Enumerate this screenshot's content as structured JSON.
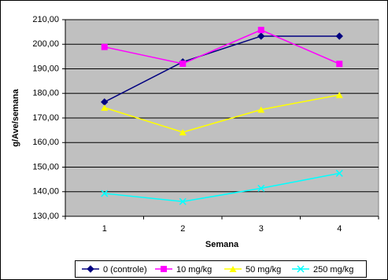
{
  "chart_data": {
    "type": "line",
    "x_label": "Semana",
    "y_label": "g/Ave/semana",
    "categories": [
      "1",
      "2",
      "3",
      "4"
    ],
    "series": [
      {
        "name": "0 (controle)",
        "color": "#000080",
        "marker": "diamond",
        "values": [
          176.5,
          192.8,
          203.3,
          203.3
        ]
      },
      {
        "name": "10 mg/kg",
        "color": "#ff00ff",
        "marker": "square",
        "values": [
          198.9,
          192.1,
          205.8,
          192.0
        ]
      },
      {
        "name": "50 mg/kg",
        "color": "#ffff00",
        "marker": "triangle",
        "values": [
          174.2,
          164.2,
          173.4,
          179.4
        ]
      },
      {
        "name": "250 mg/kg",
        "color": "#00ffff",
        "marker": "x",
        "values": [
          139.3,
          136.0,
          141.4,
          147.5
        ]
      }
    ],
    "ylim": [
      130,
      210
    ],
    "yticks": [
      {
        "value": 130,
        "label": "130,00"
      },
      {
        "value": 140,
        "label": "140,00"
      },
      {
        "value": 150,
        "label": "150,00"
      },
      {
        "value": 160,
        "label": "160,00"
      },
      {
        "value": 170,
        "label": "170,00"
      },
      {
        "value": 180,
        "label": "180,00"
      },
      {
        "value": 190,
        "label": "190,00"
      },
      {
        "value": 200,
        "label": "200,00"
      },
      {
        "value": 210,
        "label": "210,00"
      }
    ],
    "grid": true,
    "legend": "bottom"
  }
}
